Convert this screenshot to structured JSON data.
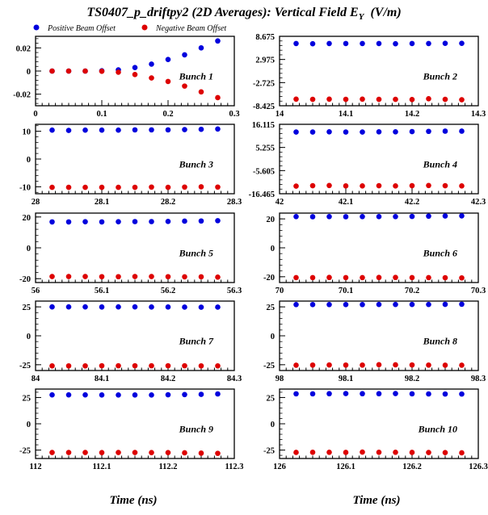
{
  "title": {
    "main": "TS0407_p_driftpy2 (2D Averages): Vertical Field E",
    "sub": "Y",
    "unit": "(V/m)"
  },
  "legend": [
    {
      "label": "Positive Beam Offset",
      "color": "#0000dd"
    },
    {
      "label": "Negative Beam Offset",
      "color": "#dd0000"
    }
  ],
  "xlabel": "Time (ns)",
  "chart_data": [
    {
      "type": "scatter",
      "label": "Bunch 1",
      "xlim": [
        0,
        0.3
      ],
      "ylim": [
        -0.03,
        0.03
      ],
      "xticks": [
        0,
        0.1,
        0.2,
        0.3
      ],
      "xticklabels": [
        "0",
        "0.1",
        "0.2",
        "0.3"
      ],
      "yticks": [
        0.02,
        0,
        -0.02
      ],
      "yticklabels": [
        "0.02",
        "0",
        "-0.02"
      ],
      "x": [
        0.025,
        0.05,
        0.075,
        0.1,
        0.125,
        0.15,
        0.175,
        0.2,
        0.225,
        0.25,
        0.275
      ],
      "series": [
        {
          "name": "Positive Beam Offset",
          "color": "#0000dd",
          "values": [
            0,
            0,
            0,
            0.0002,
            0.001,
            0.003,
            0.006,
            0.01,
            0.014,
            0.02,
            0.026
          ]
        },
        {
          "name": "Negative Beam Offset",
          "color": "#dd0000",
          "values": [
            0,
            0,
            0,
            -0.0002,
            -0.001,
            -0.003,
            -0.006,
            -0.009,
            -0.013,
            -0.018,
            -0.023
          ]
        }
      ]
    },
    {
      "type": "scatter",
      "label": "Bunch 2",
      "xlim": [
        14,
        14.3
      ],
      "ylim": [
        -8.425,
        8.675
      ],
      "xticks": [
        14,
        14.1,
        14.2,
        14.3
      ],
      "xticklabels": [
        "14",
        "14.1",
        "14.2",
        "14.3"
      ],
      "yticks": [
        8.675,
        2.975,
        -2.725,
        -8.425
      ],
      "yticklabels": [
        "8.675",
        "2.975",
        "-2.725",
        "-8.425"
      ],
      "x": [
        14.025,
        14.05,
        14.075,
        14.1,
        14.125,
        14.15,
        14.175,
        14.2,
        14.225,
        14.25,
        14.275
      ],
      "series": [
        {
          "name": "Positive Beam Offset",
          "color": "#0000dd",
          "values": [
            6.9,
            6.85,
            6.9,
            6.9,
            6.9,
            6.9,
            6.85,
            6.9,
            6.9,
            6.95,
            6.95
          ]
        },
        {
          "name": "Negative Beam Offset",
          "color": "#dd0000",
          "values": [
            -6.8,
            -6.85,
            -6.8,
            -6.85,
            -6.8,
            -6.85,
            -6.85,
            -6.9,
            -6.7,
            -6.85,
            -6.95
          ]
        }
      ]
    },
    {
      "type": "scatter",
      "label": "Bunch 3",
      "xlim": [
        28,
        28.3
      ],
      "ylim": [
        -12.5,
        12.5
      ],
      "xticks": [
        28,
        28.1,
        28.2,
        28.3
      ],
      "xticklabels": [
        "28",
        "28.1",
        "28.2",
        "28.3"
      ],
      "yticks": [
        10,
        0,
        -10
      ],
      "yticklabels": [
        "10",
        "0",
        "-10"
      ],
      "x": [
        28.025,
        28.05,
        28.075,
        28.1,
        28.125,
        28.15,
        28.175,
        28.2,
        28.225,
        28.25,
        28.275
      ],
      "series": [
        {
          "name": "Positive Beam Offset",
          "color": "#0000dd",
          "values": [
            10.4,
            10.3,
            10.4,
            10.4,
            10.4,
            10.5,
            10.5,
            10.5,
            10.6,
            10.7,
            10.8
          ]
        },
        {
          "name": "Negative Beam Offset",
          "color": "#dd0000",
          "values": [
            -10.2,
            -10.2,
            -10.2,
            -10.2,
            -10.2,
            -10.2,
            -10.1,
            -10.2,
            -10.1,
            -10.0,
            -10.1
          ]
        }
      ]
    },
    {
      "type": "scatter",
      "label": "Bunch 4",
      "xlim": [
        42,
        42.3
      ],
      "ylim": [
        -16.465,
        16.115
      ],
      "xticks": [
        42,
        42.1,
        42.2,
        42.3
      ],
      "xticklabels": [
        "42",
        "42.1",
        "42.2",
        "42.3"
      ],
      "yticks": [
        16.115,
        5.255,
        -5.605,
        -16.465
      ],
      "yticklabels": [
        "16.115",
        "5.255",
        "-5.605",
        "-16.465"
      ],
      "x": [
        42.025,
        42.05,
        42.075,
        42.1,
        42.125,
        42.15,
        42.175,
        42.2,
        42.225,
        42.25,
        42.275
      ],
      "series": [
        {
          "name": "Positive Beam Offset",
          "color": "#0000dd",
          "values": [
            12.5,
            12.5,
            12.6,
            12.5,
            12.5,
            12.6,
            12.6,
            12.7,
            12.8,
            12.9,
            12.9
          ]
        },
        {
          "name": "Negative Beam Offset",
          "color": "#dd0000",
          "values": [
            -12.9,
            -12.7,
            -12.6,
            -12.8,
            -12.8,
            -12.7,
            -12.8,
            -12.7,
            -12.6,
            -12.7,
            -12.8
          ]
        }
      ]
    },
    {
      "type": "scatter",
      "label": "Bunch 5",
      "xlim": [
        56,
        56.3
      ],
      "ylim": [
        -22.5,
        22.5
      ],
      "xticks": [
        56,
        56.1,
        56.2,
        56.3
      ],
      "xticklabels": [
        "56",
        "56.1",
        "56.2",
        "56.3"
      ],
      "yticks": [
        20,
        0,
        -20
      ],
      "yticklabels": [
        "20",
        "0",
        "-20"
      ],
      "x": [
        56.025,
        56.05,
        56.075,
        56.1,
        56.125,
        56.15,
        56.175,
        56.2,
        56.225,
        56.25,
        56.275
      ],
      "series": [
        {
          "name": "Positive Beam Offset",
          "color": "#0000dd",
          "values": [
            16.8,
            16.8,
            16.9,
            16.8,
            16.9,
            17.0,
            17.0,
            17.1,
            17.3,
            17.4,
            17.6
          ]
        },
        {
          "name": "Negative Beam Offset",
          "color": "#dd0000",
          "values": [
            -18.6,
            -18.6,
            -18.6,
            -18.7,
            -18.7,
            -18.6,
            -18.6,
            -18.7,
            -18.8,
            -18.8,
            -19.0
          ]
        }
      ]
    },
    {
      "type": "scatter",
      "label": "Bunch 6",
      "xlim": [
        70,
        70.3
      ],
      "ylim": [
        -24,
        24
      ],
      "xticks": [
        70,
        70.1,
        70.2,
        70.3
      ],
      "xticklabels": [
        "70",
        "70.1",
        "70.2",
        "70.3"
      ],
      "yticks": [
        20,
        0,
        -20
      ],
      "yticklabels": [
        "20",
        "0",
        "-20"
      ],
      "x": [
        70.025,
        70.05,
        70.075,
        70.1,
        70.125,
        70.15,
        70.175,
        70.2,
        70.225,
        70.25,
        70.275
      ],
      "series": [
        {
          "name": "Positive Beam Offset",
          "color": "#0000dd",
          "values": [
            21.6,
            21.5,
            21.6,
            21.5,
            21.6,
            21.6,
            21.6,
            21.7,
            21.9,
            22.0,
            22.1
          ]
        },
        {
          "name": "Negative Beam Offset",
          "color": "#dd0000",
          "values": [
            -20.6,
            -20.6,
            -20.5,
            -20.6,
            -20.6,
            -20.5,
            -20.5,
            -20.6,
            -20.6,
            -20.7,
            -20.8
          ]
        }
      ]
    },
    {
      "type": "scatter",
      "label": "Bunch 7",
      "xlim": [
        84,
        84.3
      ],
      "ylim": [
        -30,
        30
      ],
      "xticks": [
        84,
        84.1,
        84.2,
        84.3
      ],
      "xticklabels": [
        "84",
        "84.1",
        "84.2",
        "84.3"
      ],
      "yticks": [
        25,
        0,
        -25
      ],
      "yticklabels": [
        "25",
        "0",
        "-25"
      ],
      "x": [
        84.025,
        84.05,
        84.075,
        84.1,
        84.125,
        84.15,
        84.175,
        84.2,
        84.225,
        84.25,
        84.275
      ],
      "series": [
        {
          "name": "Positive Beam Offset",
          "color": "#0000dd",
          "values": [
            25.0,
            25.0,
            25.0,
            24.9,
            25.0,
            25.0,
            24.9,
            24.9,
            24.8,
            24.7,
            24.8
          ]
        },
        {
          "name": "Negative Beam Offset",
          "color": "#dd0000",
          "values": [
            -26.0,
            -26.0,
            -26.0,
            -25.9,
            -25.9,
            -25.9,
            -25.9,
            -25.9,
            -25.9,
            -26.0,
            -26.0
          ]
        }
      ]
    },
    {
      "type": "scatter",
      "label": "Bunch 8",
      "xlim": [
        98,
        98.3
      ],
      "ylim": [
        -30,
        30
      ],
      "xticks": [
        98,
        98.1,
        98.2,
        98.3
      ],
      "xticklabels": [
        "98",
        "98.1",
        "98.2",
        "98.3"
      ],
      "yticks": [
        25,
        0,
        -25
      ],
      "yticklabels": [
        "25",
        "0",
        "-25"
      ],
      "x": [
        98.025,
        98.05,
        98.075,
        98.1,
        98.125,
        98.15,
        98.175,
        98.2,
        98.225,
        98.25,
        98.275
      ],
      "series": [
        {
          "name": "Positive Beam Offset",
          "color": "#0000dd",
          "values": [
            27.0,
            27.0,
            27.0,
            27.0,
            27.0,
            27.1,
            27.1,
            27.1,
            27.1,
            27.2,
            27.3
          ]
        },
        {
          "name": "Negative Beam Offset",
          "color": "#dd0000",
          "values": [
            -25.4,
            -25.3,
            -25.2,
            -25.3,
            -25.3,
            -25.0,
            -25.1,
            -25.2,
            -25.3,
            -25.4,
            -25.4
          ]
        }
      ]
    },
    {
      "type": "scatter",
      "label": "Bunch 9",
      "xlim": [
        112,
        112.3
      ],
      "ylim": [
        -33,
        33
      ],
      "xticks": [
        112,
        112.1,
        112.2,
        112.3
      ],
      "xticklabels": [
        "112",
        "112.1",
        "112.2",
        "112.3"
      ],
      "yticks": [
        25,
        0,
        -25
      ],
      "yticklabels": [
        "25",
        "0",
        "-25"
      ],
      "x": [
        112.025,
        112.05,
        112.075,
        112.1,
        112.125,
        112.15,
        112.175,
        112.2,
        112.225,
        112.25,
        112.275
      ],
      "series": [
        {
          "name": "Positive Beam Offset",
          "color": "#0000dd",
          "values": [
            27.5,
            27.5,
            27.5,
            27.4,
            27.4,
            27.4,
            27.4,
            27.6,
            27.8,
            28.0,
            28.4
          ]
        },
        {
          "name": "Negative Beam Offset",
          "color": "#dd0000",
          "values": [
            -27.3,
            -27.3,
            -27.3,
            -27.4,
            -27.3,
            -27.3,
            -27.4,
            -27.4,
            -27.6,
            -27.9,
            -28.1
          ]
        }
      ]
    },
    {
      "type": "scatter",
      "label": "Bunch 10",
      "xlim": [
        126,
        126.3
      ],
      "ylim": [
        -33,
        33
      ],
      "xticks": [
        126,
        126.1,
        126.2,
        126.3
      ],
      "xticklabels": [
        "126",
        "126.1",
        "126.2",
        "126.3"
      ],
      "yticks": [
        25,
        0,
        -25
      ],
      "yticklabels": [
        "25",
        "0",
        "-25"
      ],
      "x": [
        126.025,
        126.05,
        126.075,
        126.1,
        126.125,
        126.15,
        126.175,
        126.2,
        126.225,
        126.25,
        126.275
      ],
      "series": [
        {
          "name": "Positive Beam Offset",
          "color": "#0000dd",
          "values": [
            28.5,
            28.5,
            28.6,
            28.7,
            28.6,
            28.6,
            28.7,
            28.5,
            28.4,
            28.3,
            28.3
          ]
        },
        {
          "name": "Negative Beam Offset",
          "color": "#dd0000",
          "values": [
            -27.2,
            -27.1,
            -27.1,
            -27.2,
            -26.9,
            -27.1,
            -27.1,
            -27.2,
            -27.3,
            -27.4,
            -27.6
          ]
        }
      ]
    }
  ]
}
